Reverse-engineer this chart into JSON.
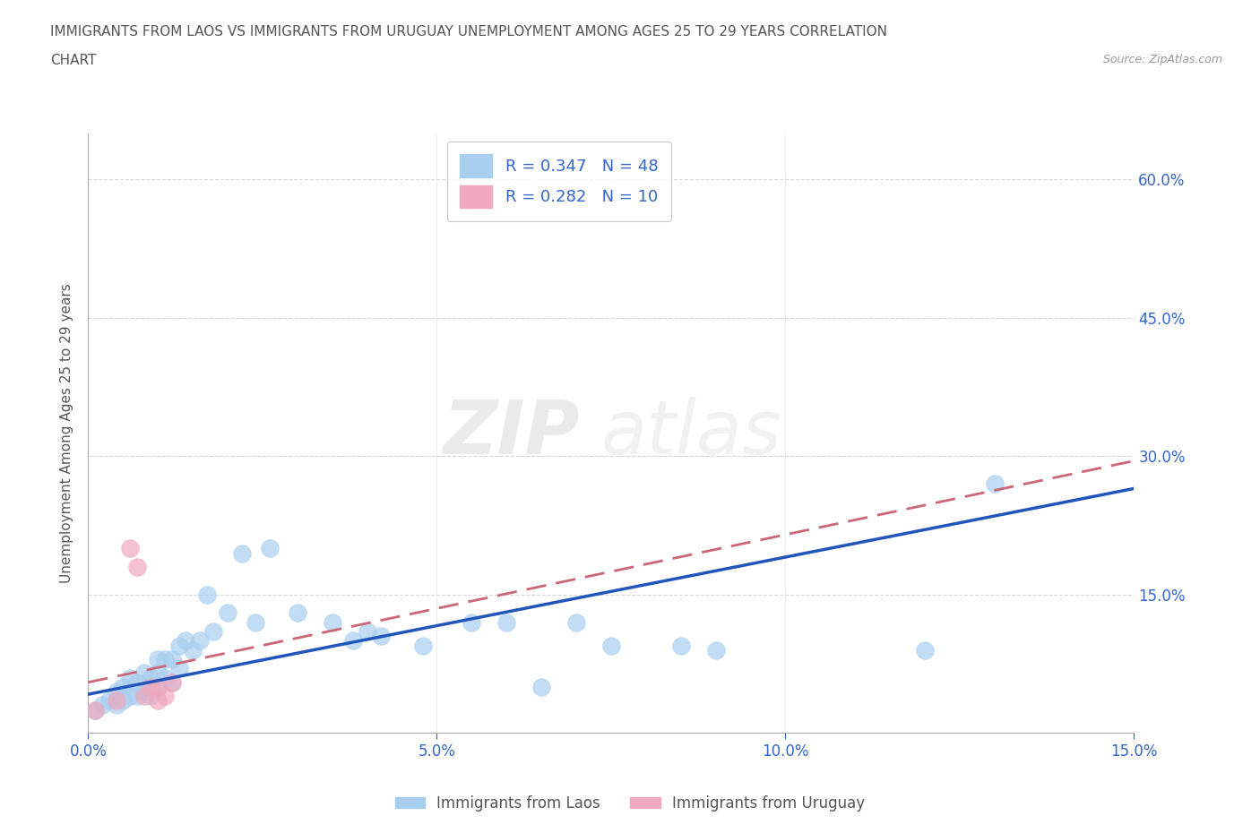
{
  "title_line1": "IMMIGRANTS FROM LAOS VS IMMIGRANTS FROM URUGUAY UNEMPLOYMENT AMONG AGES 25 TO 29 YEARS CORRELATION",
  "title_line2": "CHART",
  "source": "Source: ZipAtlas.com",
  "ylabel": "Unemployment Among Ages 25 to 29 years",
  "xlim": [
    0.0,
    0.15
  ],
  "ylim": [
    0.0,
    0.65
  ],
  "xticks": [
    0.0,
    0.05,
    0.1,
    0.15
  ],
  "yticks": [
    0.15,
    0.3,
    0.45,
    0.6
  ],
  "xtick_labels": [
    "0.0%",
    "5.0%",
    "10.0%",
    "15.0%"
  ],
  "ytick_labels": [
    "15.0%",
    "30.0%",
    "45.0%",
    "60.0%"
  ],
  "watermark_zip": "ZIP",
  "watermark_atlas": "atlas",
  "legend_laos": "R = 0.347   N = 48",
  "legend_uruguay": "R = 0.282   N = 10",
  "laos_color": "#a8cef0",
  "uruguay_color": "#f0a8bc",
  "laos_line_color": "#2255bb",
  "uruguay_line_color": "#cc6677",
  "background_color": "#ffffff",
  "laos_scatter_x": [
    0.001,
    0.002,
    0.003,
    0.004,
    0.004,
    0.005,
    0.005,
    0.006,
    0.006,
    0.007,
    0.007,
    0.008,
    0.008,
    0.009,
    0.009,
    0.01,
    0.01,
    0.01,
    0.011,
    0.011,
    0.012,
    0.012,
    0.013,
    0.013,
    0.014,
    0.015,
    0.016,
    0.017,
    0.018,
    0.02,
    0.022,
    0.024,
    0.026,
    0.03,
    0.035,
    0.038,
    0.04,
    0.042,
    0.048,
    0.055,
    0.06,
    0.065,
    0.07,
    0.075,
    0.085,
    0.09,
    0.12,
    0.13
  ],
  "laos_scatter_y": [
    0.025,
    0.03,
    0.035,
    0.03,
    0.045,
    0.035,
    0.05,
    0.04,
    0.06,
    0.04,
    0.055,
    0.045,
    0.065,
    0.04,
    0.06,
    0.05,
    0.065,
    0.08,
    0.06,
    0.08,
    0.055,
    0.08,
    0.07,
    0.095,
    0.1,
    0.09,
    0.1,
    0.15,
    0.11,
    0.13,
    0.195,
    0.12,
    0.2,
    0.13,
    0.12,
    0.1,
    0.11,
    0.105,
    0.095,
    0.12,
    0.12,
    0.05,
    0.12,
    0.095,
    0.095,
    0.09,
    0.09,
    0.27
  ],
  "uruguay_scatter_x": [
    0.001,
    0.004,
    0.006,
    0.007,
    0.008,
    0.009,
    0.01,
    0.01,
    0.011,
    0.012
  ],
  "uruguay_scatter_y": [
    0.025,
    0.035,
    0.2,
    0.18,
    0.04,
    0.05,
    0.035,
    0.05,
    0.04,
    0.055
  ],
  "laos_trend_x": [
    0.0,
    0.15
  ],
  "laos_trend_y": [
    0.042,
    0.265
  ],
  "uruguay_trend_x": [
    0.0,
    0.15
  ],
  "uruguay_trend_y": [
    0.055,
    0.295
  ],
  "grid_color": "#cccccc",
  "tick_color": "#3366cc"
}
